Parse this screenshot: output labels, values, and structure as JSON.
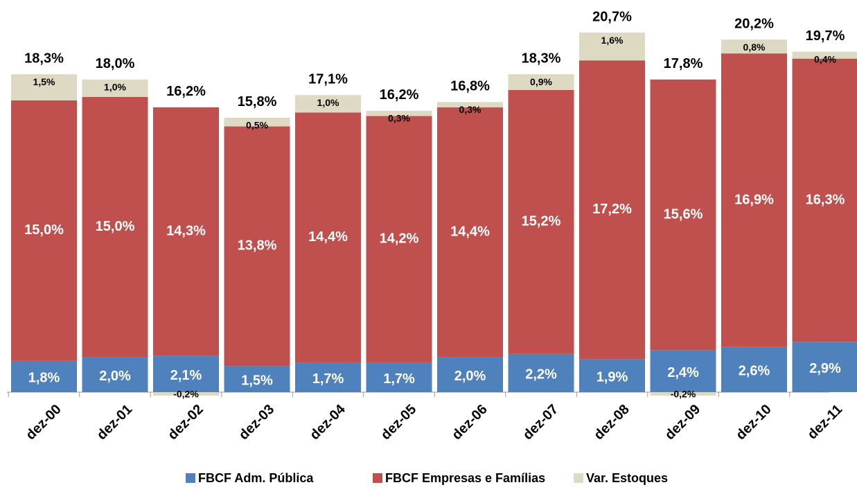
{
  "chart_data": {
    "type": "stacked-bar",
    "categories": [
      "dez-00",
      "dez-01",
      "dez-02",
      "dez-03",
      "dez-04",
      "dez-05",
      "dez-06",
      "dez-07",
      "dez-08",
      "dez-09",
      "dez-10",
      "dez-11"
    ],
    "series": [
      {
        "name": "FBCF Adm. Pública",
        "color": "#4f81bd",
        "values": [
          1.8,
          2.0,
          2.1,
          1.5,
          1.7,
          1.7,
          2.0,
          2.2,
          1.9,
          2.4,
          2.6,
          2.9
        ],
        "value_labels": [
          "1,8%",
          "2,0%",
          "2,1%",
          "1,5%",
          "1,7%",
          "1,7%",
          "2,0%",
          "2,2%",
          "1,9%",
          "2,4%",
          "2,6%",
          "2,9%"
        ]
      },
      {
        "name": "FBCF Empresas e Famílias",
        "color": "#c0504d",
        "values": [
          15.0,
          15.0,
          14.3,
          13.8,
          14.4,
          14.2,
          14.4,
          15.2,
          17.2,
          15.6,
          16.9,
          16.3
        ],
        "value_labels": [
          "15,0%",
          "15,0%",
          "14,3%",
          "13,8%",
          "14,4%",
          "14,2%",
          "14,4%",
          "15,2%",
          "17,2%",
          "15,6%",
          "16,9%",
          "16,3%"
        ]
      },
      {
        "name": "Var. Estoques",
        "color": "#ddd9c3",
        "values": [
          1.5,
          1.0,
          -0.2,
          0.5,
          1.0,
          0.3,
          0.3,
          0.9,
          1.6,
          -0.2,
          0.8,
          0.4
        ],
        "value_labels": [
          "1,5%",
          "1,0%",
          "-0,2%",
          "0,5%",
          "1,0%",
          "0,3%",
          "0,3%",
          "0,9%",
          "1,6%",
          "-0,2%",
          "0,8%",
          "0,4%"
        ]
      }
    ],
    "totals": {
      "values": [
        18.3,
        18.0,
        16.2,
        15.8,
        17.1,
        16.2,
        16.8,
        18.3,
        20.7,
        17.8,
        20.2,
        19.7
      ],
      "value_labels": [
        "18,3%",
        "18,0%",
        "16,2%",
        "15,8%",
        "17,1%",
        "16,2%",
        "16,8%",
        "18,3%",
        "20,7%",
        "17,8%",
        "20,2%",
        "19,7%"
      ]
    }
  }
}
